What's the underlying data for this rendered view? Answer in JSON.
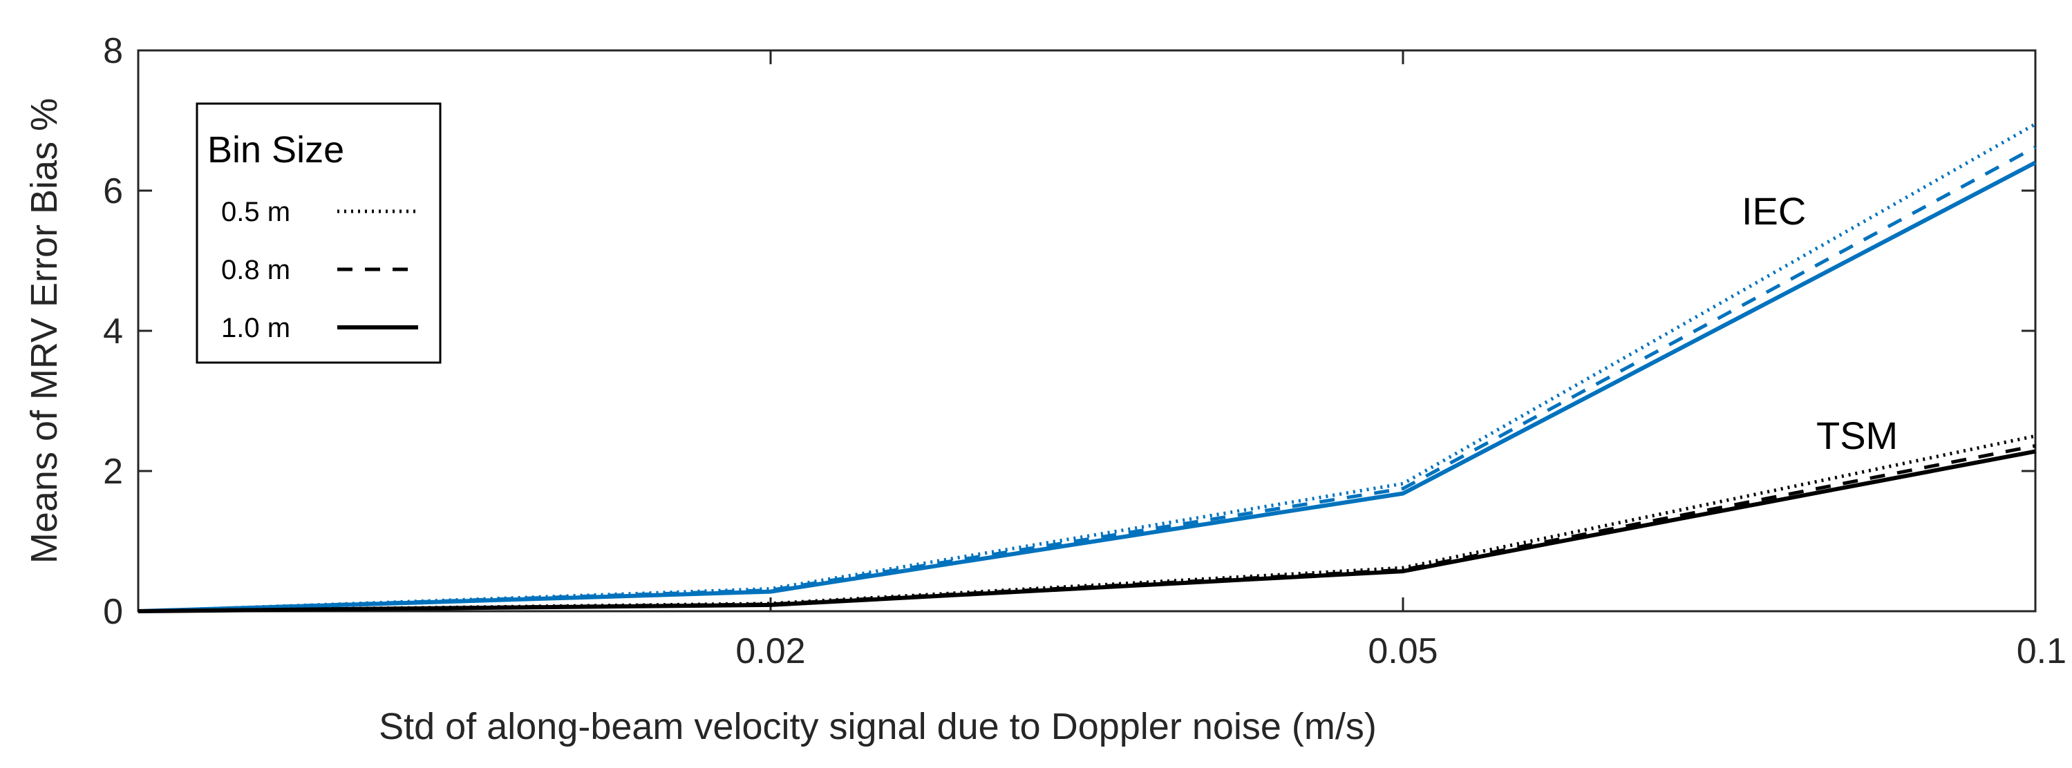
{
  "chart_data": {
    "type": "line",
    "title": "",
    "xlabel": "Std of along-beam velocity signal due to Doppler noise (m/s)",
    "ylabel": "Means of MRV Error Bias %",
    "x": [
      0,
      0.02,
      0.05,
      0.1
    ],
    "x_tick_labels": [
      "0.02",
      "0.05",
      "0.1"
    ],
    "x_positions": [
      0,
      1,
      2,
      3
    ],
    "ylim": [
      0,
      8
    ],
    "y_ticks": [
      "0",
      "2",
      "4",
      "6",
      "8"
    ],
    "grid": false,
    "legend": {
      "title": "Bin Size",
      "placement": "top-left",
      "entries": [
        "0.5 m",
        "0.8 m",
        "1.0 m"
      ]
    },
    "annotations": [
      "IEC",
      "TSM"
    ],
    "series": [
      {
        "name": "IEC 0.5 m",
        "group": "IEC",
        "bin": "0.5 m",
        "style": "dotted",
        "color": "#0072BD",
        "values": [
          0,
          0.32,
          1.82,
          6.95
        ]
      },
      {
        "name": "IEC 0.8 m",
        "group": "IEC",
        "bin": "0.8 m",
        "style": "dashed",
        "color": "#0072BD",
        "values": [
          0,
          0.3,
          1.75,
          6.62
        ]
      },
      {
        "name": "IEC 1.0 m",
        "group": "IEC",
        "bin": "1.0 m",
        "style": "solid",
        "color": "#0072BD",
        "values": [
          0,
          0.28,
          1.68,
          6.4
        ]
      },
      {
        "name": "TSM 0.5 m",
        "group": "TSM",
        "bin": "0.5 m",
        "style": "dotted",
        "color": "#000000",
        "values": [
          0,
          0.11,
          0.62,
          2.5
        ]
      },
      {
        "name": "TSM 0.8 m",
        "group": "TSM",
        "bin": "0.8 m",
        "style": "dashed",
        "color": "#000000",
        "values": [
          0,
          0.1,
          0.59,
          2.36
        ]
      },
      {
        "name": "TSM 1.0 m",
        "group": "TSM",
        "bin": "1.0 m",
        "style": "solid",
        "color": "#000000",
        "values": [
          0,
          0.09,
          0.57,
          2.28
        ]
      }
    ]
  }
}
